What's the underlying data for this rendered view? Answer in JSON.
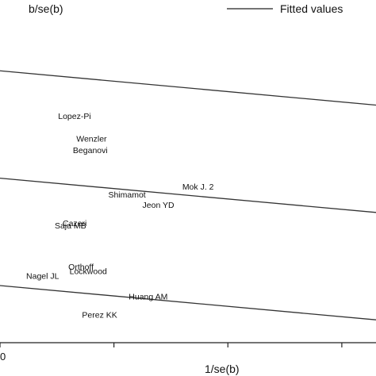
{
  "chart_data": {
    "type": "scatter",
    "ylabel": "b/se(b)",
    "xlabel": "1/se(b)",
    "legend": {
      "entries": [
        "Fitted values"
      ],
      "placement": "top-right"
    },
    "x_tick_labels": [
      "0",
      "",
      "",
      ""
    ],
    "x_ticks": [
      0,
      1,
      2,
      3
    ],
    "xlim": [
      0,
      3.3
    ],
    "ylim": [
      -3.6,
      3.9
    ],
    "lines": [
      {
        "x": [
          0,
          3.3
        ],
        "y": [
          2.35,
          1.6
        ]
      },
      {
        "x": [
          0,
          3.3
        ],
        "y": [
          0,
          -0.75
        ]
      },
      {
        "x": [
          0,
          3.3
        ],
        "y": [
          -2.35,
          -3.1
        ]
      }
    ],
    "points": [
      {
        "label": "Lopez-Pi",
        "x": 0.51,
        "y": 1.3
      },
      {
        "label": "Wenzler",
        "x": 0.67,
        "y": 0.8
      },
      {
        "label": "Beganovi",
        "x": 0.64,
        "y": 0.55
      },
      {
        "label": "Mok J. 2",
        "x": 1.6,
        "y": -0.25
      },
      {
        "label": "Shimamot",
        "x": 0.95,
        "y": -0.42
      },
      {
        "label": "Jeon YD",
        "x": 1.25,
        "y": -0.65
      },
      {
        "label": "Cazeri",
        "x": 0.55,
        "y": -1.05
      },
      {
        "label": "Saja MB",
        "x": 0.48,
        "y": -1.1
      },
      {
        "label": "Orthoff",
        "x": 0.6,
        "y": -2.0
      },
      {
        "label": "Lockwood",
        "x": 0.61,
        "y": -2.1
      },
      {
        "label": "Nagel JL",
        "x": 0.23,
        "y": -2.2
      },
      {
        "label": "Huang AM",
        "x": 1.13,
        "y": -2.65
      },
      {
        "label": "Perez KK",
        "x": 0.72,
        "y": -3.05
      }
    ]
  }
}
